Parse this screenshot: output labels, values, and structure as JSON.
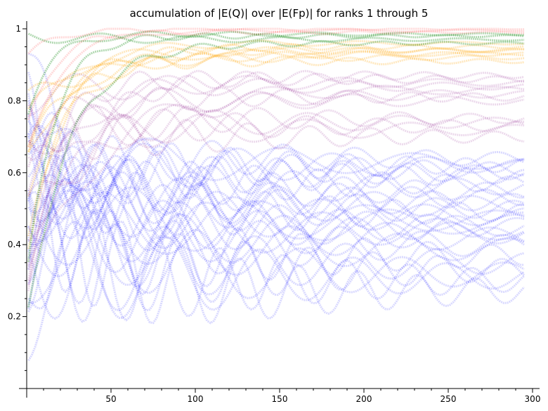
{
  "chart_data": {
    "type": "scatter",
    "title": "accumulation of |E(Q)| over |E(Fp)| for ranks 1 through 5",
    "xlabel": "",
    "ylabel": "",
    "xlim": [
      0,
      305
    ],
    "ylim": [
      0,
      1.02
    ],
    "grid": false,
    "legend": "none",
    "x_ticks": [
      50,
      100,
      150,
      200,
      250,
      300
    ],
    "x_tick_labels": [
      "50",
      "100",
      "150",
      "200",
      "250",
      "300"
    ],
    "y_ticks": [
      0.2,
      0.4,
      0.6,
      0.8,
      1.0
    ],
    "y_tick_labels": [
      "0.2",
      "0.4",
      "0.6",
      "0.8",
      "1"
    ],
    "n_max": 296,
    "series": [
      {
        "rank": 1,
        "color": "#0000ff",
        "opacity": 0.15,
        "final_values": [
          0.27,
          0.3,
          0.31,
          0.32,
          0.33,
          0.35,
          0.37,
          0.39,
          0.4,
          0.42,
          0.43,
          0.44,
          0.45,
          0.45,
          0.46,
          0.47,
          0.48,
          0.49,
          0.5,
          0.51,
          0.52,
          0.53,
          0.55,
          0.56,
          0.57,
          0.59,
          0.6,
          0.61,
          0.62,
          0.62,
          0.63,
          0.64
        ]
      },
      {
        "rank": 2,
        "color": "#800080",
        "opacity": 0.15,
        "final_values": [
          0.7,
          0.72,
          0.73,
          0.74,
          0.75,
          0.8,
          0.81,
          0.82,
          0.83,
          0.84,
          0.85,
          0.86,
          0.87
        ]
      },
      {
        "rank": 3,
        "color": "#ffa500",
        "opacity": 0.25,
        "final_values": [
          0.91,
          0.92,
          0.93,
          0.93,
          0.94,
          0.94,
          0.95,
          0.96
        ]
      },
      {
        "rank": 4,
        "color": "#008000",
        "opacity": 0.3,
        "final_values": [
          0.96,
          0.97,
          0.98,
          0.985
        ]
      },
      {
        "rank": 5,
        "color": "#ff0000",
        "opacity": 0.15,
        "final_values": [
          0.99,
          0.995,
          1.0
        ]
      }
    ]
  }
}
